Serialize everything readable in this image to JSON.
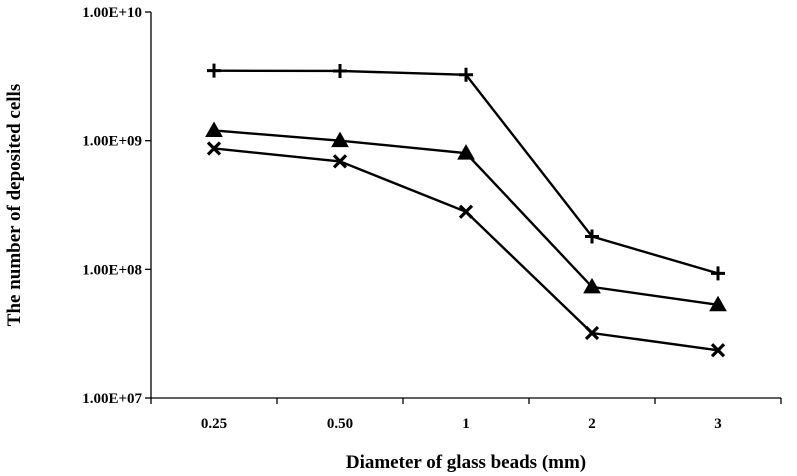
{
  "chart_data": {
    "type": "line",
    "title": "",
    "xlabel": "Diameter of glass beads (mm)",
    "ylabel": "The number of deposited cells",
    "categories": [
      "0.25",
      "0.50",
      "1",
      "2",
      "3"
    ],
    "yscale": "log",
    "ylim": [
      10000000,
      10000000000
    ],
    "yticks": [
      "1.00E+07",
      "1.00E+08",
      "1.00E+09",
      "1.00E+10"
    ],
    "grid": false,
    "legend": "none",
    "series": [
      {
        "marker": "plus",
        "values": [
          3500000000,
          3480000000,
          3250000000,
          180000000,
          93000000
        ]
      },
      {
        "marker": "triangle",
        "values": [
          1200000000,
          1000000000,
          800000000,
          73000000,
          53000000
        ]
      },
      {
        "marker": "x",
        "values": [
          870000000,
          690000000,
          280000000,
          32000000,
          23500000
        ]
      }
    ]
  }
}
